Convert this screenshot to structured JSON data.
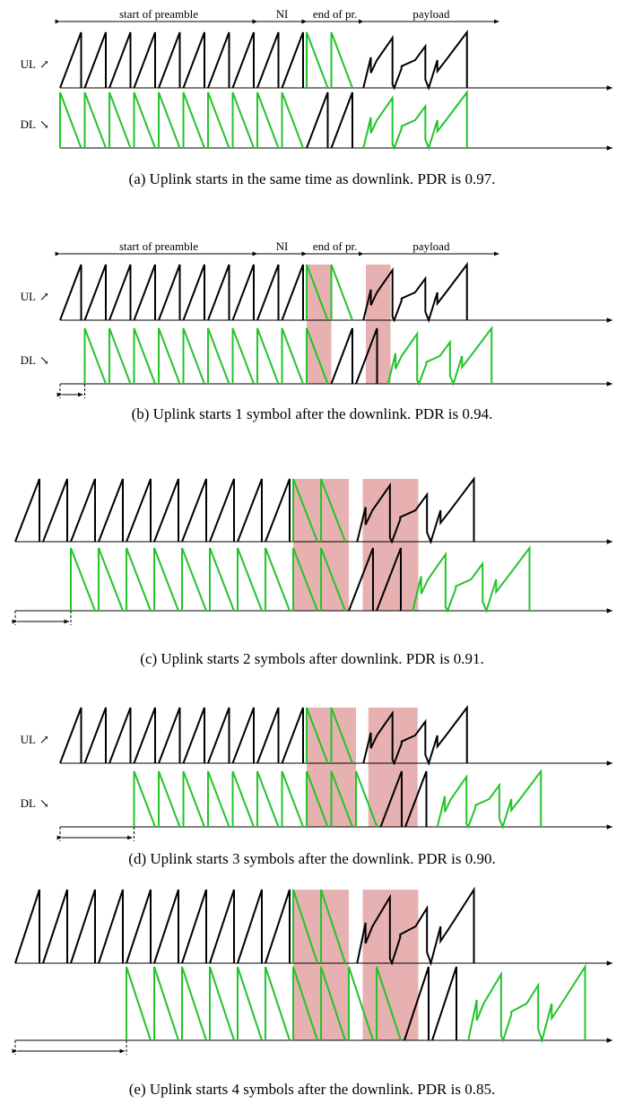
{
  "figure": {
    "colors": {
      "uplink": "#000000",
      "downlink": "#22c42a",
      "collision": "#e4a8a8",
      "axis": "#000000"
    },
    "segment_labels": {
      "preamble_start": "start of preamble",
      "ni": "NI",
      "preamble_end": "end of pr.",
      "payload": "payload"
    },
    "row_labels": {
      "uplink": "UL",
      "downlink": "DL"
    },
    "panels": [
      {
        "id": "a",
        "caption": "(a) Uplink starts in the same time as downlink. PDR is 0.97.",
        "offset_symbols": 0,
        "pdr": 0.97,
        "show_segment_labels": true,
        "show_row_labels": true
      },
      {
        "id": "b",
        "caption": "(b) Uplink starts 1 symbol after the downlink. PDR is 0.94.",
        "offset_symbols": 1,
        "pdr": 0.94,
        "show_segment_labels": true,
        "show_row_labels": true
      },
      {
        "id": "c",
        "caption": "(c) Uplink starts 2 symbols after downlink. PDR is 0.91.",
        "offset_symbols": 2,
        "pdr": 0.91,
        "show_segment_labels": false,
        "show_row_labels": false
      },
      {
        "id": "d",
        "caption": "(d) Uplink starts 3 symbols after the downlink. PDR is 0.90.",
        "offset_symbols": 3,
        "pdr": 0.9,
        "show_segment_labels": false,
        "show_row_labels": true
      },
      {
        "id": "e",
        "caption": "(e) Uplink starts 4 symbols after the downlink. PDR is 0.85.",
        "offset_symbols": 4,
        "pdr": 0.85,
        "show_segment_labels": false,
        "show_row_labels": false
      }
    ]
  }
}
